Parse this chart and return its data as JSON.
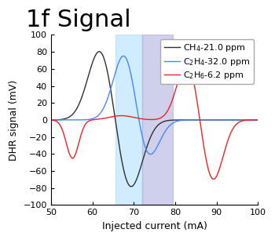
{
  "title": "1f Signal",
  "xlabel": "Injected current (mA)",
  "ylabel": "DHR signal (mV)",
  "xlim": [
    50,
    100
  ],
  "ylim": [
    -100,
    100
  ],
  "xticks": [
    50,
    60,
    70,
    80,
    90,
    100
  ],
  "yticks": [
    -100,
    -80,
    -60,
    -40,
    -20,
    0,
    20,
    40,
    60,
    80,
    100
  ],
  "legend": [
    {
      "label": "CH$_4$-21.0 ppm",
      "color": "#303030"
    },
    {
      "label": "C$_2$H$_4$-32.0 ppm",
      "color": "#4488ff"
    },
    {
      "label": "C$_2$H$_6$-6.2 ppm",
      "color": "#ee2222"
    }
  ],
  "bg_cyan": [
    65.5,
    72.0
  ],
  "bg_purple": [
    72.0,
    79.5
  ],
  "bg_cyan_color": "#aaddff",
  "bg_purple_color": "#aaaadd",
  "bg_alpha": 0.55,
  "title_fontsize": 22,
  "label_fontsize": 9,
  "tick_fontsize": 8,
  "legend_fontsize": 8
}
